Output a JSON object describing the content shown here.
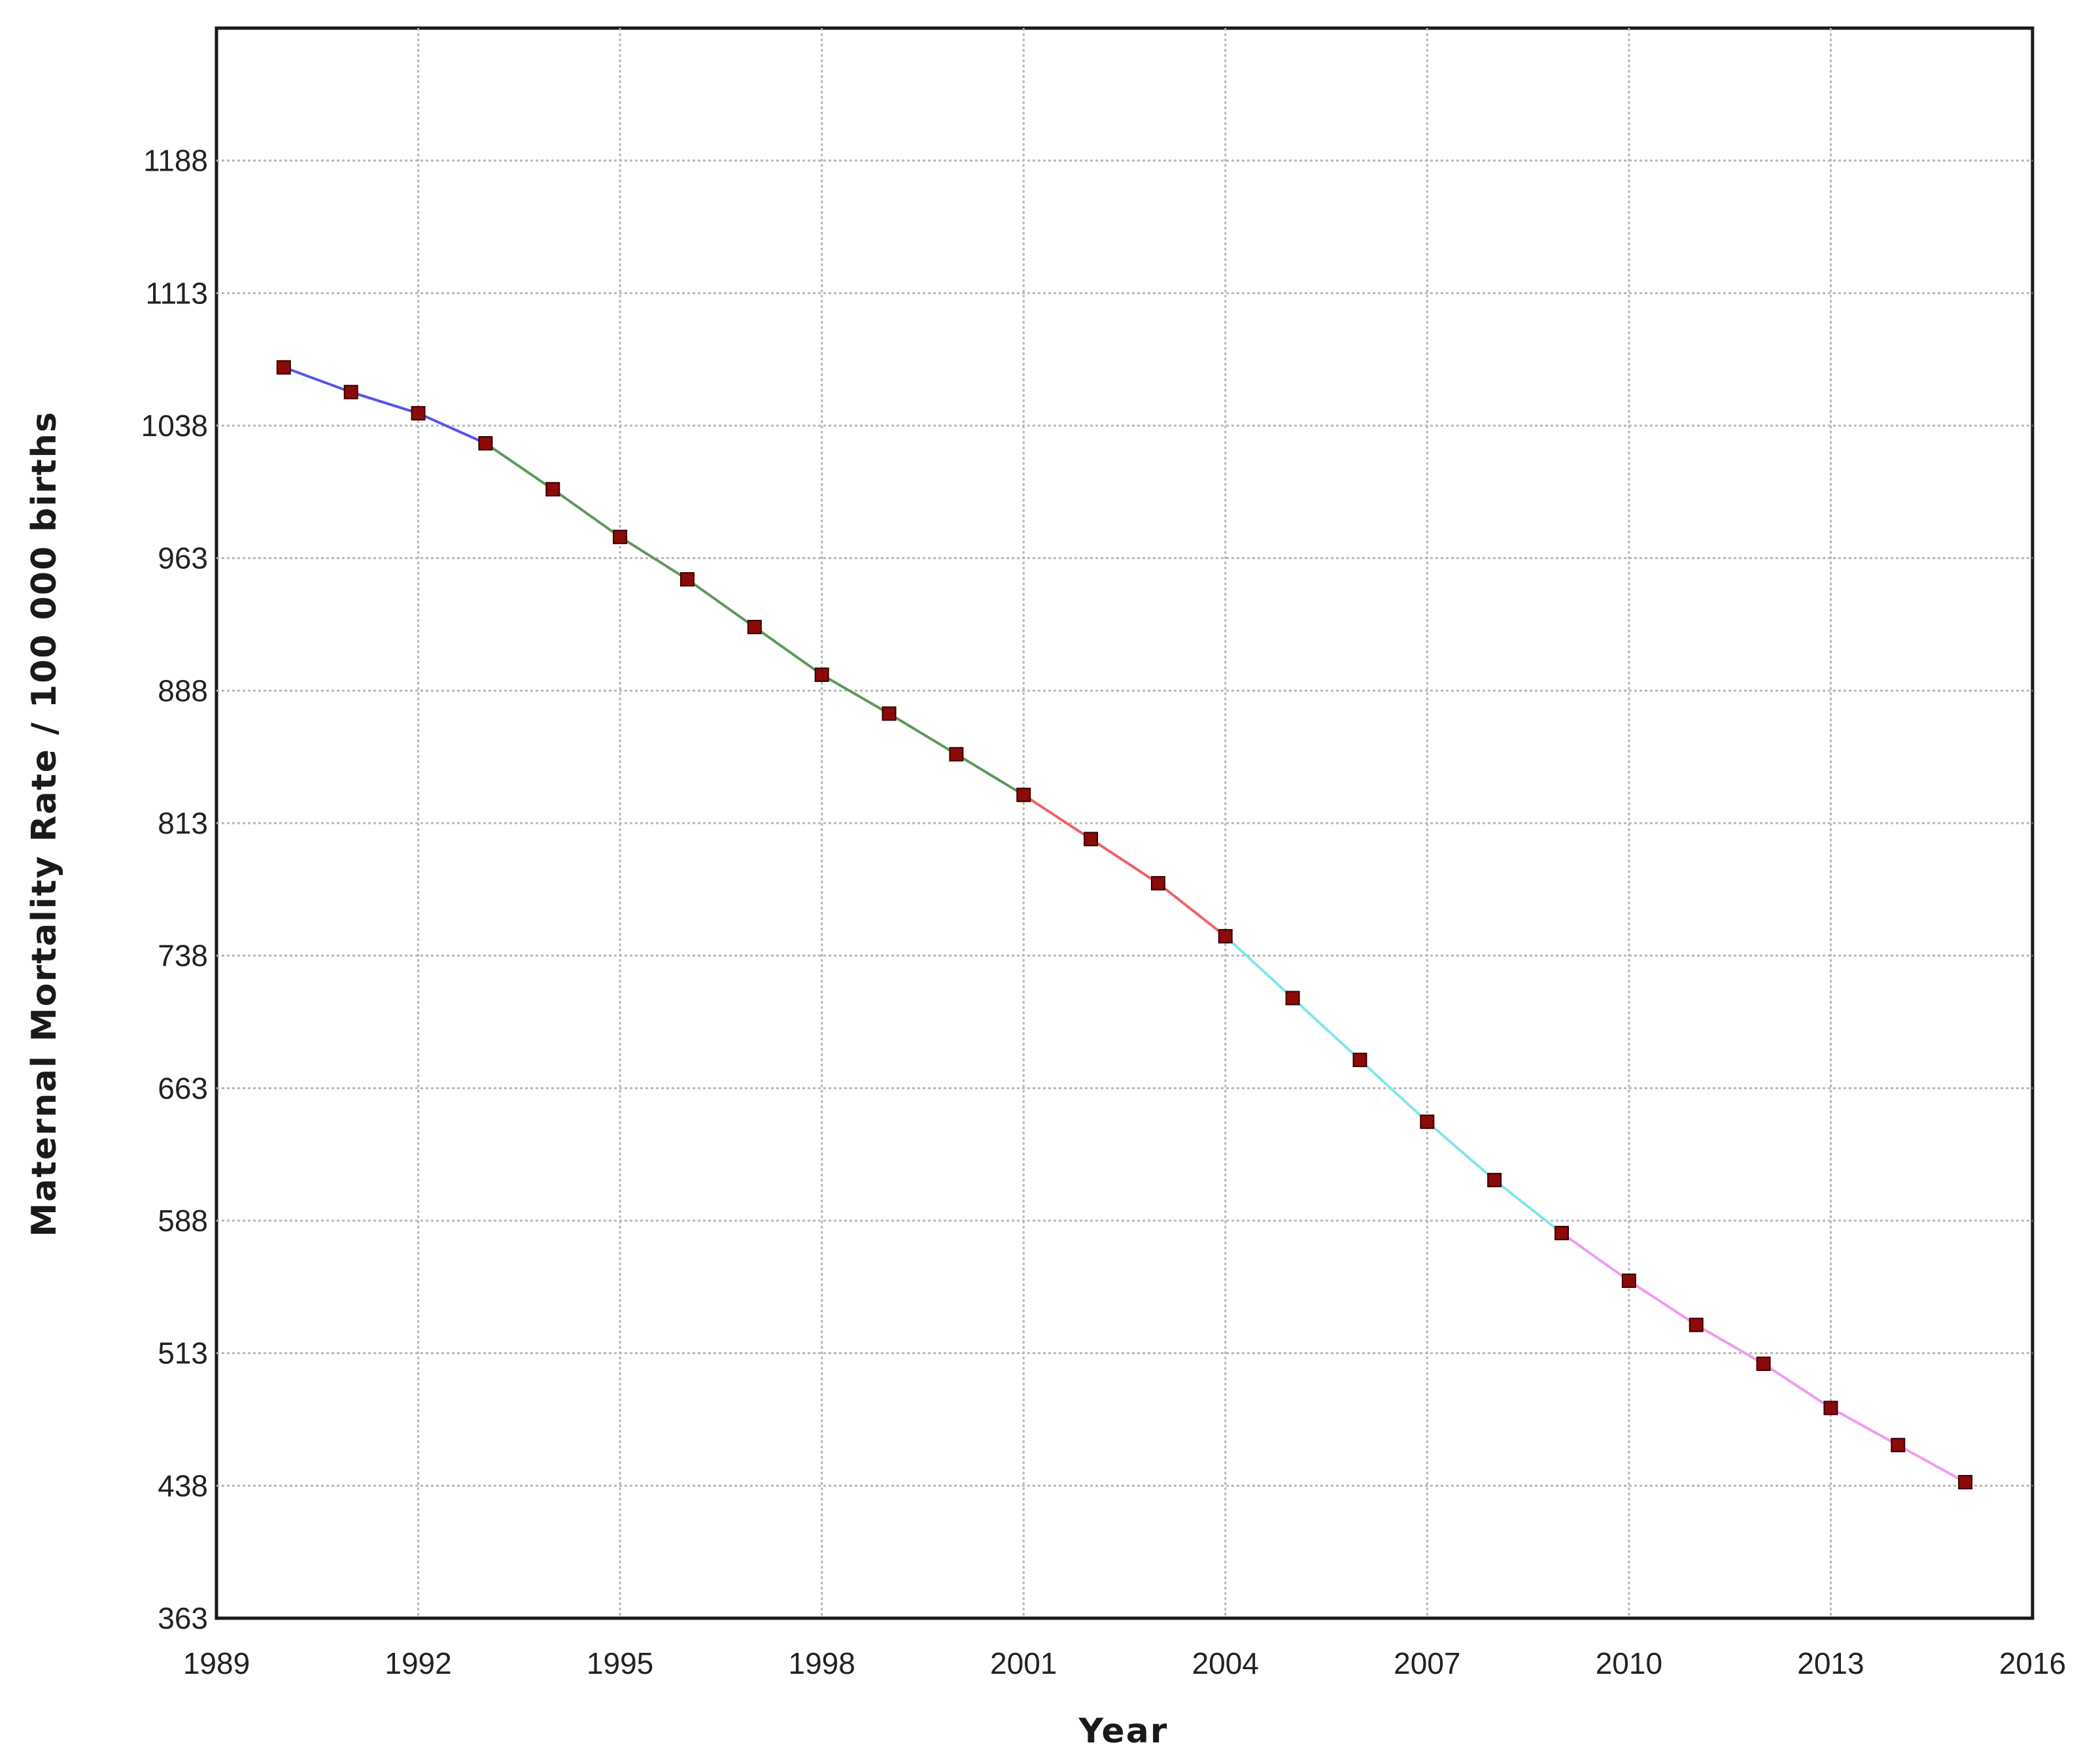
{
  "chart_data": {
    "type": "line",
    "title": "",
    "xlabel": "Year",
    "ylabel": "Maternal Mortality Rate / 100 000 births",
    "xlim": [
      1989,
      2016
    ],
    "ylim": [
      363,
      1263
    ],
    "xticks": [
      1989,
      1992,
      1995,
      1998,
      2001,
      2004,
      2007,
      2010,
      2013,
      2016
    ],
    "yticks": [
      363,
      438,
      513,
      588,
      663,
      738,
      813,
      888,
      963,
      1038,
      1113,
      1188
    ],
    "grid": true,
    "legend": "none",
    "x": [
      1990,
      1991,
      1992,
      1993,
      1994,
      1995,
      1996,
      1997,
      1998,
      1999,
      2000,
      2001,
      2002,
      2003,
      2004,
      2005,
      2006,
      2007,
      2008,
      2009,
      2010,
      2011,
      2012,
      2013,
      2014,
      2015
    ],
    "y": [
      1071,
      1057,
      1045,
      1028,
      1002,
      975,
      951,
      924,
      897,
      875,
      852,
      829,
      804,
      779,
      749,
      714,
      679,
      644,
      611,
      581,
      554,
      529,
      507,
      482,
      461,
      440
    ],
    "segments": [
      {
        "from": 1990,
        "to": 1993,
        "color": "#5555ee"
      },
      {
        "from": 1993,
        "to": 2001,
        "color": "#5a9a5a"
      },
      {
        "from": 2001,
        "to": 2004,
        "color": "#f06060"
      },
      {
        "from": 2004,
        "to": 2009,
        "color": "#80e6e6"
      },
      {
        "from": 2009,
        "to": 2015,
        "color": "#f09af0"
      }
    ],
    "marker_color": "#8b0a0a"
  }
}
